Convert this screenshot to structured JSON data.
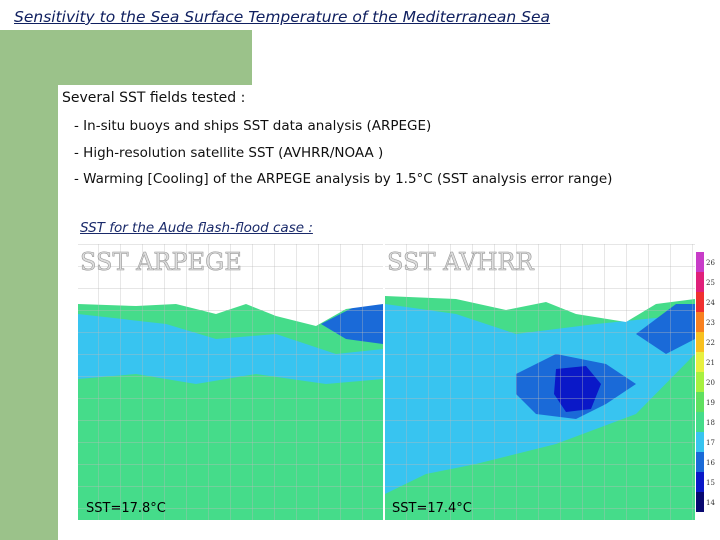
{
  "header": {
    "title": "Sensitivity to the Sea Surface Temperature of the Mediterranean Sea"
  },
  "intro": "Several SST fields tested :",
  "bullets": [
    "- In-situ buoys and ships SST data analysis (ARPEGE)",
    "- High-resolution satellite SST (AVHRR/NOAA )",
    "- Warming [Cooling] of the ARPEGE analysis by 1.5°C  (SST analysis error range)"
  ],
  "subtitle": "SST for the Aude flash-flood case :",
  "maps": [
    {
      "label": "SST ARPEGE",
      "caption": "SST=17.8°C"
    },
    {
      "label": "SST AVHRR",
      "caption": "SST=17.4°C"
    }
  ],
  "colorbar": [
    "26",
    "25",
    "24",
    "23",
    "22",
    "21",
    "20",
    "19",
    "18",
    "17",
    "16",
    "15",
    "14"
  ]
}
